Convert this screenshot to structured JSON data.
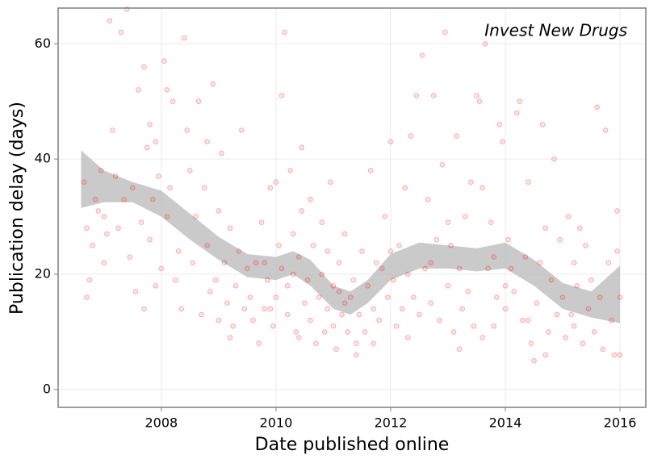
{
  "chart_data": {
    "type": "scatter",
    "annotation": "Invest New Drugs",
    "x_label": "Date published online",
    "y_label": "Publication delay (days)",
    "xlim": [
      2006.2,
      2016.45
    ],
    "ylim": [
      -3.1,
      66.2
    ],
    "xticks": [
      2008,
      2010,
      2012,
      2014,
      2016
    ],
    "yticks": [
      0,
      20,
      40,
      60
    ],
    "grid": true,
    "color": "#ff0000",
    "band_color": "#bdbdbd",
    "x": [
      2006.65,
      2006.7,
      2006.75,
      2006.8,
      2006.85,
      2006.9,
      2006.95,
      2007.0,
      2007.05,
      2007.1,
      2007.15,
      2007.2,
      2007.25,
      2007.3,
      2007.35,
      2007.4,
      2007.45,
      2007.5,
      2006.7,
      2007.0,
      2007.55,
      2007.6,
      2007.65,
      2007.7,
      2007.75,
      2007.8,
      2007.85,
      2007.9,
      2007.95,
      2008.0,
      2008.05,
      2008.1,
      2008.15,
      2008.2,
      2008.25,
      2008.3,
      2008.35,
      2008.4,
      2008.45,
      2008.5,
      2007.7,
      2007.9,
      2008.1,
      2007.8,
      2008.55,
      2008.6,
      2008.65,
      2008.7,
      2008.75,
      2008.8,
      2008.85,
      2008.9,
      2008.95,
      2009.0,
      2009.05,
      2009.1,
      2009.15,
      2009.2,
      2009.25,
      2009.3,
      2009.35,
      2009.4,
      2009.45,
      2009.5,
      2009.0,
      2009.2,
      2008.8,
      2009.55,
      2009.6,
      2009.65,
      2009.7,
      2009.75,
      2009.8,
      2009.85,
      2009.9,
      2009.95,
      2010.0,
      2010.05,
      2010.1,
      2010.15,
      2010.2,
      2010.25,
      2010.3,
      2010.35,
      2010.4,
      2010.45,
      2010.5,
      2009.8,
      2010.0,
      2010.2,
      2010.4,
      2009.9,
      2010.3,
      2010.1,
      2010.45,
      2010.55,
      2010.6,
      2010.65,
      2010.7,
      2010.75,
      2010.8,
      2010.85,
      2010.9,
      2010.95,
      2011.0,
      2011.05,
      2011.1,
      2011.15,
      2011.2,
      2011.25,
      2011.3,
      2011.35,
      2011.4,
      2011.45,
      2011.5,
      2010.6,
      2010.8,
      2011.0,
      2011.2,
      2011.4,
      2010.9,
      2011.1,
      2011.55,
      2011.6,
      2011.65,
      2011.7,
      2011.75,
      2011.8,
      2011.85,
      2011.9,
      2011.95,
      2012.0,
      2012.05,
      2012.1,
      2012.15,
      2012.2,
      2012.25,
      2012.3,
      2012.35,
      2012.4,
      2012.45,
      2012.5,
      2011.7,
      2012.0,
      2012.3,
      2012.55,
      2012.6,
      2012.65,
      2012.7,
      2012.75,
      2012.8,
      2012.85,
      2012.9,
      2012.95,
      2013.0,
      2013.05,
      2013.1,
      2013.15,
      2013.2,
      2013.25,
      2013.3,
      2013.35,
      2013.4,
      2013.45,
      2013.5,
      2012.7,
      2013.2,
      2013.0,
      2013.55,
      2013.6,
      2013.65,
      2013.7,
      2013.75,
      2013.8,
      2013.85,
      2013.9,
      2013.95,
      2014.0,
      2014.05,
      2014.1,
      2014.15,
      2014.2,
      2014.25,
      2014.3,
      2014.35,
      2014.4,
      2014.45,
      2014.5,
      2013.6,
      2014.0,
      2014.4,
      2013.8,
      2014.55,
      2014.6,
      2014.65,
      2014.7,
      2014.75,
      2014.8,
      2014.85,
      2014.9,
      2014.95,
      2015.0,
      2015.05,
      2015.1,
      2015.15,
      2015.2,
      2015.25,
      2015.3,
      2015.35,
      2015.4,
      2015.45,
      2015.5,
      2015.55,
      2015.6,
      2015.65,
      2015.7,
      2015.75,
      2015.8,
      2015.85,
      2015.9,
      2015.95,
      2016.0,
      2015.95,
      2016.0,
      2015.2,
      2014.7
    ],
    "values": [
      36,
      28,
      19,
      25,
      33,
      31,
      38,
      30,
      27,
      64,
      45,
      37,
      28,
      62,
      33,
      66,
      23,
      35,
      16,
      22,
      17,
      52,
      29,
      56,
      42,
      26,
      33,
      43,
      37,
      21,
      57,
      30,
      35,
      50,
      19,
      24,
      14,
      61,
      45,
      38,
      14,
      18,
      52,
      46,
      22,
      30,
      50,
      13,
      35,
      25,
      17,
      53,
      19,
      12,
      41,
      22,
      15,
      28,
      11,
      18,
      24,
      45,
      14,
      21,
      31,
      9,
      43,
      16,
      12,
      22,
      8,
      29,
      14,
      19,
      35,
      11,
      16,
      25,
      51,
      62,
      13,
      38,
      20,
      10,
      23,
      31,
      15,
      22,
      36,
      18,
      9,
      14,
      27,
      21,
      42,
      19,
      12,
      25,
      8,
      16,
      29,
      10,
      14,
      36,
      18,
      7,
      22,
      13,
      27,
      10,
      16,
      19,
      8,
      13,
      24,
      33,
      20,
      11,
      15,
      6,
      24,
      17,
      10,
      18,
      38,
      14,
      22,
      12,
      21,
      30,
      16,
      43,
      19,
      11,
      25,
      14,
      35,
      20,
      44,
      16,
      51,
      13,
      8,
      24,
      9,
      58,
      21,
      33,
      15,
      51,
      26,
      12,
      39,
      62,
      18,
      25,
      10,
      44,
      21,
      14,
      30,
      17,
      36,
      11,
      51,
      22,
      7,
      29,
      50,
      35,
      60,
      21,
      29,
      11,
      16,
      46,
      43,
      14,
      26,
      21,
      17,
      48,
      50,
      12,
      23,
      36,
      8,
      5,
      9,
      18,
      12,
      23,
      15,
      22,
      46,
      28,
      10,
      19,
      40,
      13,
      26,
      16,
      9,
      30,
      13,
      22,
      18,
      28,
      8,
      25,
      14,
      19,
      10,
      49,
      16,
      7,
      45,
      22,
      12,
      6,
      24,
      16,
      31,
      6,
      11,
      6
    ],
    "band": {
      "x": [
        2006.6,
        2007.0,
        2007.5,
        2008.0,
        2008.5,
        2009.0,
        2009.5,
        2010.0,
        2010.3,
        2010.6,
        2011.0,
        2011.3,
        2011.6,
        2012.0,
        2012.5,
        2013.0,
        2013.5,
        2014.0,
        2014.5,
        2015.0,
        2015.5,
        2016.0
      ],
      "lower": [
        31.5,
        32.5,
        32.5,
        30,
        26,
        22.5,
        19.5,
        19,
        20,
        18,
        14,
        13,
        15,
        19,
        21,
        21,
        20.5,
        21,
        18,
        14,
        12.5,
        11.5
      ],
      "upper": [
        41.5,
        38,
        36,
        34.5,
        30.5,
        26.5,
        23.5,
        23,
        24,
        22.5,
        18,
        17,
        19,
        23.5,
        25.5,
        25,
        24.5,
        25.5,
        22.5,
        18.5,
        17,
        21.5
      ]
    }
  }
}
